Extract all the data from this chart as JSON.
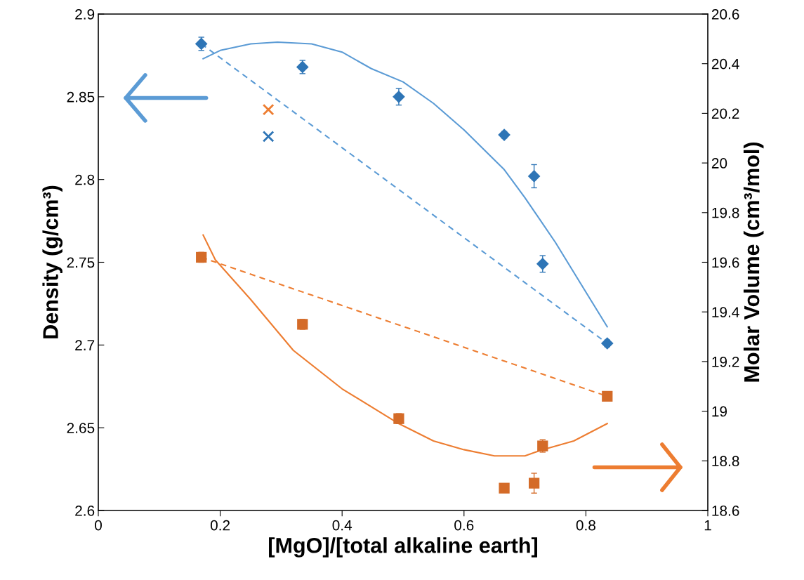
{
  "chart_data": {
    "type": "scatter",
    "xlabel": "[MgO]/[total alkaline earth]",
    "ylabel": "Density (g/cm³)",
    "y2label": "Molar Volume (cm³/mol)",
    "xlim": [
      0,
      1
    ],
    "xticks": [
      0,
      0.2,
      0.4,
      0.6,
      0.8,
      1
    ],
    "ylim": [
      2.6,
      2.9
    ],
    "yticks": [
      2.6,
      2.65,
      2.7,
      2.75,
      2.8,
      2.85,
      2.9
    ],
    "y2lim": [
      18.6,
      20.6
    ],
    "y2ticks": [
      18.6,
      18.8,
      19,
      19.2,
      19.4,
      19.6,
      19.8,
      20,
      20.2,
      20.4,
      20.6
    ],
    "grid": false,
    "legend": false,
    "series": [
      {
        "marker": "diamond",
        "color": "#2e75b6",
        "x": [
          0.169,
          0.335,
          0.493,
          0.666,
          0.715,
          0.729,
          0.835
        ],
        "values": [
          2.882,
          2.868,
          2.85,
          2.827,
          2.802,
          2.749,
          2.701
        ],
        "errors": [
          0.004,
          0.004,
          0.005,
          0.002,
          0.007,
          0.005,
          0.002
        ]
      },
      {
        "marker": "square",
        "axis": "y2",
        "color": "#d46b28",
        "x": [
          0.169,
          0.335,
          0.493,
          0.666,
          0.715,
          0.729,
          0.835
        ],
        "values": [
          19.62,
          19.35,
          18.97,
          18.69,
          18.71,
          18.86,
          19.06
        ],
        "errors": [
          0.02,
          0.02,
          0.02,
          null,
          0.04,
          0.025,
          null
        ]
      },
      {
        "marker": "cross",
        "color": "#2e75b6",
        "x": [
          0.279
        ],
        "values": [
          2.826
        ]
      },
      {
        "marker": "cross",
        "axis": "y2",
        "color": "#ed7d31",
        "x": [
          0.279
        ],
        "values": [
          20.215
        ]
      },
      {
        "type": "line",
        "line_style": "solid",
        "color": "#5b9bd5",
        "x": [
          0.172,
          0.2,
          0.25,
          0.294,
          0.35,
          0.4,
          0.448,
          0.5,
          0.55,
          0.6,
          0.666,
          0.7,
          0.75,
          0.8,
          0.835
        ],
        "values": [
          2.873,
          2.878,
          2.882,
          2.883,
          2.882,
          2.877,
          2.867,
          2.859,
          2.846,
          2.83,
          2.806,
          2.789,
          2.762,
          2.732,
          2.711
        ]
      },
      {
        "type": "line",
        "line_style": "dashed",
        "color": "#5b9bd5",
        "x": [
          0.169,
          0.835
        ],
        "values": [
          2.882,
          2.701
        ]
      },
      {
        "type": "line",
        "line_style": "solid",
        "axis": "y2",
        "color": "#ed7d31",
        "x": [
          0.172,
          0.192,
          0.25,
          0.32,
          0.4,
          0.493,
          0.55,
          0.6,
          0.65,
          0.7,
          0.729,
          0.78,
          0.835
        ],
        "values": [
          19.71,
          19.61,
          19.45,
          19.245,
          19.09,
          18.95,
          18.88,
          18.845,
          18.82,
          18.82,
          18.845,
          18.88,
          18.95
        ]
      },
      {
        "type": "line",
        "line_style": "dashed",
        "axis": "y2",
        "color": "#ed7d31",
        "x": [
          0.169,
          0.835
        ],
        "values": [
          19.62,
          19.06
        ]
      }
    ]
  }
}
